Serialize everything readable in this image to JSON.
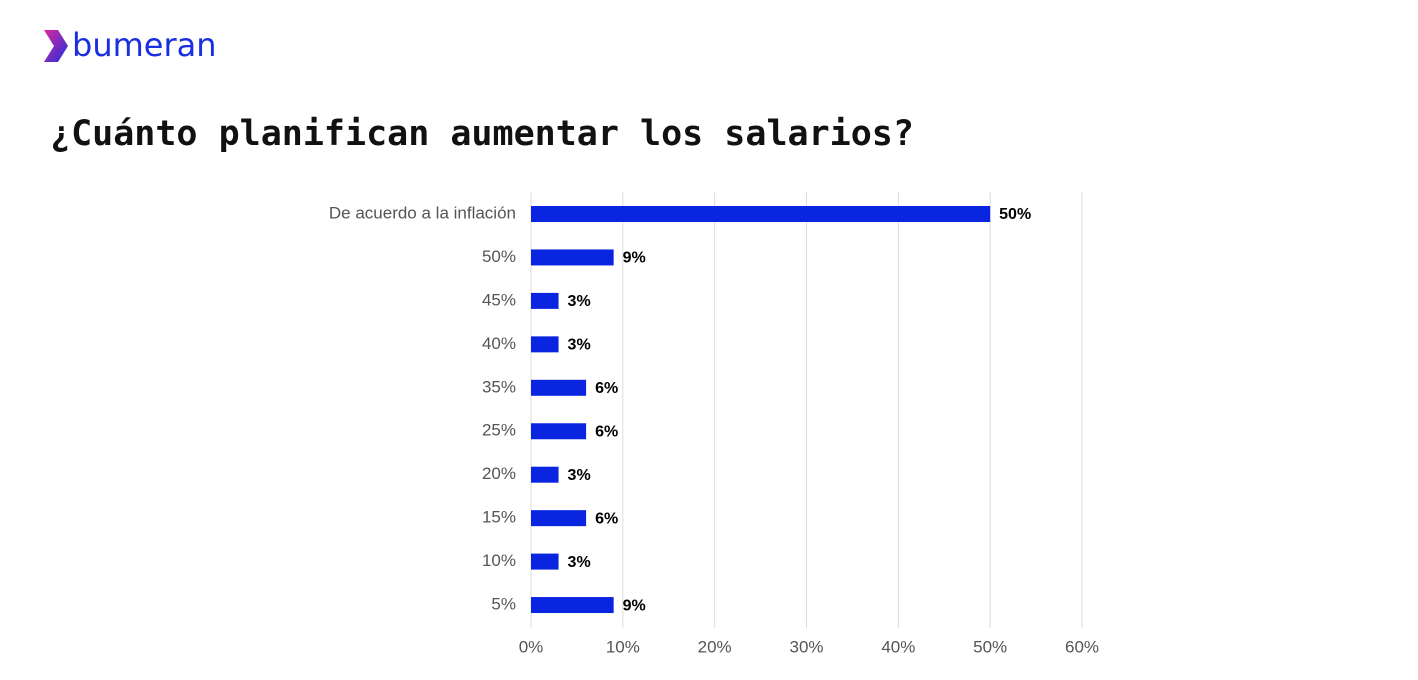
{
  "brand": "bumeran",
  "chart_data": {
    "type": "hbar",
    "title": "¿Cuánto planifican aumentar los salarios?",
    "categories": [
      "De acuerdo a la inflación",
      "50%",
      "45%",
      "40%",
      "35%",
      "25%",
      "20%",
      "15%",
      "10%",
      "5%"
    ],
    "values": [
      50,
      9,
      3,
      3,
      6,
      6,
      3,
      6,
      3,
      9
    ],
    "value_labels": [
      "50%",
      "9%",
      "3%",
      "3%",
      "6%",
      "6%",
      "3%",
      "6%",
      "3%",
      "9%"
    ],
    "color": "#0a25e0",
    "xlim": [
      0,
      60
    ],
    "xticks": [
      {
        "value": 0,
        "label": "0%"
      },
      {
        "value": 10,
        "label": "10%"
      },
      {
        "value": 20,
        "label": "20%"
      },
      {
        "value": 30,
        "label": "30%"
      },
      {
        "value": 40,
        "label": "40%"
      },
      {
        "value": 50,
        "label": "50%"
      },
      {
        "value": 60,
        "label": "60%"
      }
    ],
    "grid": true
  }
}
